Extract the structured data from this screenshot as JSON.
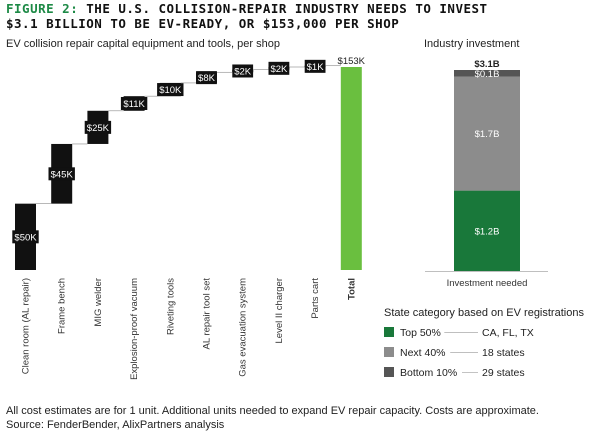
{
  "header": {
    "figure_prefix": "FIGURE 2:",
    "title_line1": "THE U.S. COLLISION-REPAIR INDUSTRY NEEDS TO INVEST",
    "title_line2": "$3.1 BILLION TO BE EV-READY, OR $153,000 PER SHOP"
  },
  "colors": {
    "black": "#111111",
    "green": "#6abf3f",
    "dark_green": "#19783a",
    "gray": "#8c8c8c",
    "dark_gray": "#555555"
  },
  "chart_data": [
    {
      "type": "bar",
      "subtype": "waterfall",
      "title": "EV collision repair capital equipment and tools, per shop",
      "categories": [
        "Clean room (AL repair)",
        "Frame bench",
        "MIG welder",
        "Explosion-proof vacuum",
        "Riveting tools",
        "AL repair tool set",
        "Gas evacuation system",
        "Level II charger",
        "Parts cart",
        "Total"
      ],
      "values": [
        50,
        45,
        25,
        11,
        10,
        8,
        2,
        2,
        1,
        153
      ],
      "data_labels": [
        "$50K",
        "$45K",
        "$25K",
        "$11K",
        "$10K",
        "$8K",
        "$2K",
        "$2K",
        "$1K",
        "$153K"
      ],
      "units": "$K",
      "ylim": [
        0,
        153
      ]
    },
    {
      "type": "bar",
      "subtype": "stacked",
      "title": "Industry investment",
      "categories": [
        "Investment needed"
      ],
      "series": [
        {
          "name": "Top 50%",
          "values": [
            1.2
          ],
          "label": "$1.2B",
          "color": "#19783a"
        },
        {
          "name": "Next 40%",
          "values": [
            1.7
          ],
          "label": "$1.7B",
          "color": "#8c8c8c"
        },
        {
          "name": "Bottom 10%",
          "values": [
            0.1
          ],
          "label": "$0.1B",
          "color": "#555555"
        }
      ],
      "total_label": "$3.1B",
      "units": "$B"
    }
  ],
  "legend": {
    "title": "State category based on EV registrations",
    "items": [
      {
        "name": "Top 50%",
        "states": "CA, FL, TX",
        "color": "#19783a"
      },
      {
        "name": "Next 40%",
        "states": "18 states",
        "color": "#8c8c8c"
      },
      {
        "name": "Bottom 10%",
        "states": "29 states",
        "color": "#555555"
      }
    ]
  },
  "footnotes": {
    "line1": "All cost estimates are for 1 unit. Additional units needed to expand EV repair capacity. Costs are approximate.",
    "line2": "Source: FenderBender, AlixPartners analysis"
  }
}
